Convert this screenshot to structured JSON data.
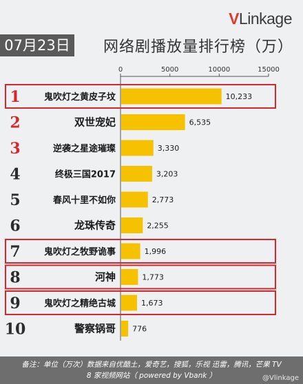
{
  "brand": {
    "v": "V",
    "rest": "Linkage"
  },
  "header": {
    "date": "07月23日",
    "title": "网络剧播放量排行榜（万）"
  },
  "chart_data": {
    "type": "bar",
    "orientation": "horizontal",
    "xlim": [
      0,
      15000
    ],
    "xticks": [
      0,
      5000,
      10000,
      15000
    ],
    "tick_labels": [
      "0",
      "5000",
      "10000",
      "15000"
    ],
    "bar_color": "#f6c200",
    "highlight_color": "#d8272c",
    "rows": [
      {
        "rank": "1",
        "name": "鬼吹灯之黄皮子坟",
        "value": 10233,
        "label": "10,233",
        "highlight": true,
        "rank_color": "#d8272c"
      },
      {
        "rank": "2",
        "name": "双世宠妃",
        "value": 6535,
        "label": "6,535",
        "highlight": false,
        "rank_color": "#d8272c"
      },
      {
        "rank": "3",
        "name": "逆袭之星途璀璨",
        "value": 3330,
        "label": "3,330",
        "highlight": false,
        "rank_color": "#d8272c"
      },
      {
        "rank": "4",
        "name": "终极三国2017",
        "value": 3203,
        "label": "3,203",
        "highlight": false,
        "rank_color": "#2c2c2c"
      },
      {
        "rank": "5",
        "name": "春风十里不如你",
        "value": 2773,
        "label": "2,773",
        "highlight": false,
        "rank_color": "#2c2c2c"
      },
      {
        "rank": "6",
        "name": "龙珠传奇",
        "value": 2255,
        "label": "2,255",
        "highlight": false,
        "rank_color": "#2c2c2c"
      },
      {
        "rank": "7",
        "name": "鬼吹灯之牧野诡事",
        "value": 1996,
        "label": "1,996",
        "highlight": true,
        "rank_color": "#2c2c2c"
      },
      {
        "rank": "8",
        "name": "河神",
        "value": 1773,
        "label": "1,773",
        "highlight": true,
        "rank_color": "#2c2c2c"
      },
      {
        "rank": "9",
        "name": "鬼吹灯之精绝古城",
        "value": 1673,
        "label": "1,673",
        "highlight": true,
        "rank_color": "#2c2c2c"
      },
      {
        "rank": "10",
        "name": "警察锅哥",
        "value": 776,
        "label": "776",
        "highlight": false,
        "rank_color": "#2c2c2c"
      }
    ]
  },
  "footer": {
    "line1": "备注：单位（万次）数据来自优酷土，爱奇艺，搜狐，乐视 迅雷，腾讯，芒果 TV",
    "line2": "8 家视频网站（ powered by Vbank ）"
  },
  "watermark": "@Vlinkage"
}
